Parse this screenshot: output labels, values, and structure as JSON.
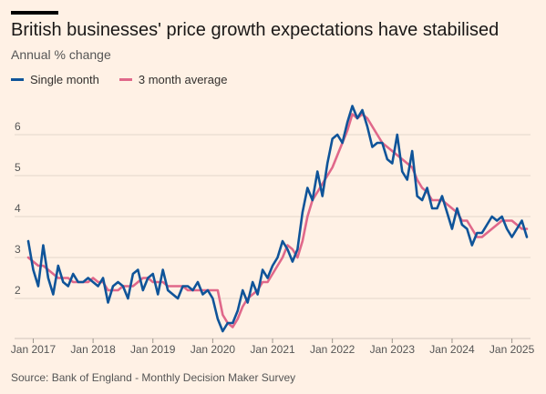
{
  "title": "British businesses' price growth expectations have stabilised",
  "subtitle": "Annual % change",
  "source": "Source: Bank of England - Monthly Decision Maker Survey",
  "colors": {
    "single": "#0F5499",
    "avg": "#E0688A",
    "grid": "#E3D7CC",
    "background": "#FFF1E5"
  },
  "chart_data": {
    "type": "line",
    "title": "British businesses' price growth expectations have stabilised",
    "ylabel": "Annual % change",
    "ylim": [
      1,
      7
    ],
    "yticks": [
      2,
      3,
      4,
      5,
      6
    ],
    "xticks": [
      {
        "label": "Jan 2017",
        "x": "2017-01"
      },
      {
        "label": "Jan 2018",
        "x": "2018-01"
      },
      {
        "label": "Jan 2019",
        "x": "2019-01"
      },
      {
        "label": "Jan 2020",
        "x": "2020-01"
      },
      {
        "label": "Jan 2021",
        "x": "2021-01"
      },
      {
        "label": "Jan 2022",
        "x": "2022-01"
      },
      {
        "label": "Jan 2023",
        "x": "2023-01"
      },
      {
        "label": "Jan 2024",
        "x": "2024-01"
      },
      {
        "label": "Jan 2025",
        "x": "2025-01"
      }
    ],
    "grid": true,
    "legend": "top-left",
    "series": [
      {
        "name": "Single month",
        "color": "#0F5499",
        "points": [
          [
            "2016-12",
            3.4
          ],
          [
            "2017-01",
            2.7
          ],
          [
            "2017-02",
            2.3
          ],
          [
            "2017-03",
            3.3
          ],
          [
            "2017-04",
            2.5
          ],
          [
            "2017-05",
            2.1
          ],
          [
            "2017-06",
            2.8
          ],
          [
            "2017-07",
            2.4
          ],
          [
            "2017-08",
            2.3
          ],
          [
            "2017-09",
            2.6
          ],
          [
            "2017-10",
            2.4
          ],
          [
            "2017-11",
            2.4
          ],
          [
            "2017-12",
            2.5
          ],
          [
            "2018-01",
            2.4
          ],
          [
            "2018-02",
            2.3
          ],
          [
            "2018-03",
            2.5
          ],
          [
            "2018-04",
            1.9
          ],
          [
            "2018-05",
            2.3
          ],
          [
            "2018-06",
            2.4
          ],
          [
            "2018-07",
            2.3
          ],
          [
            "2018-08",
            2.0
          ],
          [
            "2018-09",
            2.6
          ],
          [
            "2018-10",
            2.7
          ],
          [
            "2018-11",
            2.2
          ],
          [
            "2018-12",
            2.5
          ],
          [
            "2019-01",
            2.6
          ],
          [
            "2019-02",
            2.1
          ],
          [
            "2019-03",
            2.7
          ],
          [
            "2019-04",
            2.2
          ],
          [
            "2019-05",
            2.1
          ],
          [
            "2019-06",
            2.0
          ],
          [
            "2019-07",
            2.3
          ],
          [
            "2019-08",
            2.3
          ],
          [
            "2019-09",
            2.2
          ],
          [
            "2019-10",
            2.4
          ],
          [
            "2019-11",
            2.1
          ],
          [
            "2019-12",
            2.2
          ],
          [
            "2020-01",
            2.0
          ],
          [
            "2020-02",
            1.5
          ],
          [
            "2020-03",
            1.2
          ],
          [
            "2020-04",
            1.4
          ],
          [
            "2020-05",
            1.4
          ],
          [
            "2020-06",
            1.7
          ],
          [
            "2020-07",
            2.2
          ],
          [
            "2020-08",
            1.9
          ],
          [
            "2020-09",
            2.4
          ],
          [
            "2020-10",
            2.1
          ],
          [
            "2020-11",
            2.7
          ],
          [
            "2020-12",
            2.5
          ],
          [
            "2021-01",
            2.8
          ],
          [
            "2021-02",
            3.0
          ],
          [
            "2021-03",
            3.4
          ],
          [
            "2021-04",
            3.2
          ],
          [
            "2021-05",
            2.9
          ],
          [
            "2021-06",
            3.2
          ],
          [
            "2021-07",
            4.1
          ],
          [
            "2021-08",
            4.7
          ],
          [
            "2021-09",
            4.4
          ],
          [
            "2021-10",
            5.1
          ],
          [
            "2021-11",
            4.5
          ],
          [
            "2021-12",
            5.3
          ],
          [
            "2022-01",
            5.9
          ],
          [
            "2022-02",
            6.0
          ],
          [
            "2022-03",
            5.8
          ],
          [
            "2022-04",
            6.3
          ],
          [
            "2022-05",
            6.7
          ],
          [
            "2022-06",
            6.4
          ],
          [
            "2022-07",
            6.6
          ],
          [
            "2022-08",
            6.2
          ],
          [
            "2022-09",
            5.7
          ],
          [
            "2022-10",
            5.8
          ],
          [
            "2022-11",
            5.8
          ],
          [
            "2022-12",
            5.4
          ],
          [
            "2023-01",
            5.3
          ],
          [
            "2023-02",
            6.0
          ],
          [
            "2023-03",
            5.1
          ],
          [
            "2023-04",
            4.9
          ],
          [
            "2023-05",
            5.6
          ],
          [
            "2023-06",
            4.5
          ],
          [
            "2023-07",
            4.4
          ],
          [
            "2023-08",
            4.7
          ],
          [
            "2023-09",
            4.2
          ],
          [
            "2023-10",
            4.2
          ],
          [
            "2023-11",
            4.5
          ],
          [
            "2023-12",
            4.1
          ],
          [
            "2024-01",
            3.7
          ],
          [
            "2024-02",
            4.2
          ],
          [
            "2024-03",
            3.8
          ],
          [
            "2024-04",
            3.7
          ],
          [
            "2024-05",
            3.3
          ],
          [
            "2024-06",
            3.6
          ],
          [
            "2024-07",
            3.6
          ],
          [
            "2024-08",
            3.8
          ],
          [
            "2024-09",
            4.0
          ],
          [
            "2024-10",
            3.9
          ],
          [
            "2024-11",
            4.0
          ],
          [
            "2024-12",
            3.7
          ],
          [
            "2025-01",
            3.5
          ],
          [
            "2025-02",
            3.7
          ],
          [
            "2025-03",
            3.9
          ],
          [
            "2025-04",
            3.5
          ]
        ]
      },
      {
        "name": "3 month average",
        "color": "#E0688A",
        "points": [
          [
            "2016-12",
            3.0
          ],
          [
            "2017-01",
            2.9
          ],
          [
            "2017-02",
            2.8
          ],
          [
            "2017-03",
            2.8
          ],
          [
            "2017-04",
            2.7
          ],
          [
            "2017-05",
            2.6
          ],
          [
            "2017-06",
            2.5
          ],
          [
            "2017-07",
            2.5
          ],
          [
            "2017-08",
            2.5
          ],
          [
            "2017-09",
            2.4
          ],
          [
            "2017-10",
            2.4
          ],
          [
            "2017-11",
            2.4
          ],
          [
            "2017-12",
            2.4
          ],
          [
            "2018-01",
            2.5
          ],
          [
            "2018-02",
            2.4
          ],
          [
            "2018-03",
            2.4
          ],
          [
            "2018-04",
            2.2
          ],
          [
            "2018-05",
            2.2
          ],
          [
            "2018-06",
            2.2
          ],
          [
            "2018-07",
            2.3
          ],
          [
            "2018-08",
            2.3
          ],
          [
            "2018-09",
            2.3
          ],
          [
            "2018-10",
            2.4
          ],
          [
            "2018-11",
            2.5
          ],
          [
            "2018-12",
            2.5
          ],
          [
            "2019-01",
            2.4
          ],
          [
            "2019-02",
            2.4
          ],
          [
            "2019-03",
            2.4
          ],
          [
            "2019-04",
            2.3
          ],
          [
            "2019-05",
            2.3
          ],
          [
            "2019-06",
            2.3
          ],
          [
            "2019-07",
            2.3
          ],
          [
            "2019-08",
            2.2
          ],
          [
            "2019-09",
            2.2
          ],
          [
            "2019-10",
            2.2
          ],
          [
            "2019-11",
            2.2
          ],
          [
            "2019-12",
            2.2
          ],
          [
            "2020-01",
            2.2
          ],
          [
            "2020-02",
            2.2
          ],
          [
            "2020-03",
            1.6
          ],
          [
            "2020-04",
            1.4
          ],
          [
            "2020-05",
            1.3
          ],
          [
            "2020-06",
            1.5
          ],
          [
            "2020-07",
            1.8
          ],
          [
            "2020-08",
            2.0
          ],
          [
            "2020-09",
            2.1
          ],
          [
            "2020-10",
            2.2
          ],
          [
            "2020-11",
            2.4
          ],
          [
            "2020-12",
            2.4
          ],
          [
            "2021-01",
            2.6
          ],
          [
            "2021-02",
            2.8
          ],
          [
            "2021-03",
            3.0
          ],
          [
            "2021-04",
            3.3
          ],
          [
            "2021-05",
            3.2
          ],
          [
            "2021-06",
            3.0
          ],
          [
            "2021-07",
            3.4
          ],
          [
            "2021-08",
            4.0
          ],
          [
            "2021-09",
            4.4
          ],
          [
            "2021-10",
            4.6
          ],
          [
            "2021-11",
            4.8
          ],
          [
            "2021-12",
            5.0
          ],
          [
            "2022-01",
            5.2
          ],
          [
            "2022-02",
            5.5
          ],
          [
            "2022-03",
            5.8
          ],
          [
            "2022-04",
            6.1
          ],
          [
            "2022-05",
            6.5
          ],
          [
            "2022-06",
            6.4
          ],
          [
            "2022-07",
            6.5
          ],
          [
            "2022-08",
            6.4
          ],
          [
            "2022-09",
            6.2
          ],
          [
            "2022-10",
            6.0
          ],
          [
            "2022-11",
            5.8
          ],
          [
            "2022-12",
            5.7
          ],
          [
            "2023-01",
            5.6
          ],
          [
            "2023-02",
            5.5
          ],
          [
            "2023-03",
            5.4
          ],
          [
            "2023-04",
            5.3
          ],
          [
            "2023-05",
            5.2
          ],
          [
            "2023-06",
            4.9
          ],
          [
            "2023-07",
            4.7
          ],
          [
            "2023-08",
            4.6
          ],
          [
            "2023-09",
            4.4
          ],
          [
            "2023-10",
            4.4
          ],
          [
            "2023-11",
            4.4
          ],
          [
            "2023-12",
            4.3
          ],
          [
            "2024-01",
            4.2
          ],
          [
            "2024-02",
            4.1
          ],
          [
            "2024-03",
            3.9
          ],
          [
            "2024-04",
            3.9
          ],
          [
            "2024-05",
            3.7
          ],
          [
            "2024-06",
            3.5
          ],
          [
            "2024-07",
            3.5
          ],
          [
            "2024-08",
            3.6
          ],
          [
            "2024-09",
            3.7
          ],
          [
            "2024-10",
            3.8
          ],
          [
            "2024-11",
            3.9
          ],
          [
            "2024-12",
            3.9
          ],
          [
            "2025-01",
            3.9
          ],
          [
            "2025-02",
            3.8
          ],
          [
            "2025-03",
            3.7
          ],
          [
            "2025-04",
            3.7
          ]
        ]
      }
    ]
  }
}
